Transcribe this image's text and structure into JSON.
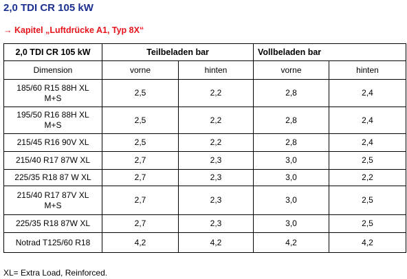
{
  "header": {
    "title": "2,0 TDI CR 105 kW",
    "link": "→ Kapitel „Luftdrücke A1, Typ 8X“"
  },
  "table": {
    "head": [
      "2,0 TDI CR 105 kW",
      "Teilbeladen bar",
      "Vollbeladen bar"
    ],
    "subhead": [
      "Dimension",
      "vorne",
      "hinten",
      "vorne",
      "hinten"
    ],
    "rows": [
      [
        "185/60 R15 88H XL M+S",
        "2,5",
        "2,2",
        "2,8",
        "2,4"
      ],
      [
        "195/50 R16 88H XL M+S",
        "2,5",
        "2,2",
        "2,8",
        "2,4"
      ],
      [
        "215/45 R16 90V XL",
        "2,5",
        "2,2",
        "2,8",
        "2,4"
      ],
      [
        "215/40 R17 87W XL",
        "2,7",
        "2,3",
        "3,0",
        "2,5"
      ],
      [
        "225/35 R18 87 W XL",
        "2,7",
        "2,3",
        "3,0",
        "2,2"
      ],
      [
        "215/40 R17 87V XL M+S",
        "2,7",
        "2,3",
        "3,0",
        "2,5"
      ],
      [
        "225/35 R18 87W XL",
        "2,7",
        "2,3",
        "3,0",
        "2,5"
      ],
      [
        "Notrad T125/60 R18",
        "4,2",
        "4,2",
        "4,2",
        "4,2"
      ]
    ]
  },
  "footer": {
    "note": "XL= Extra Load, Reinforced."
  }
}
